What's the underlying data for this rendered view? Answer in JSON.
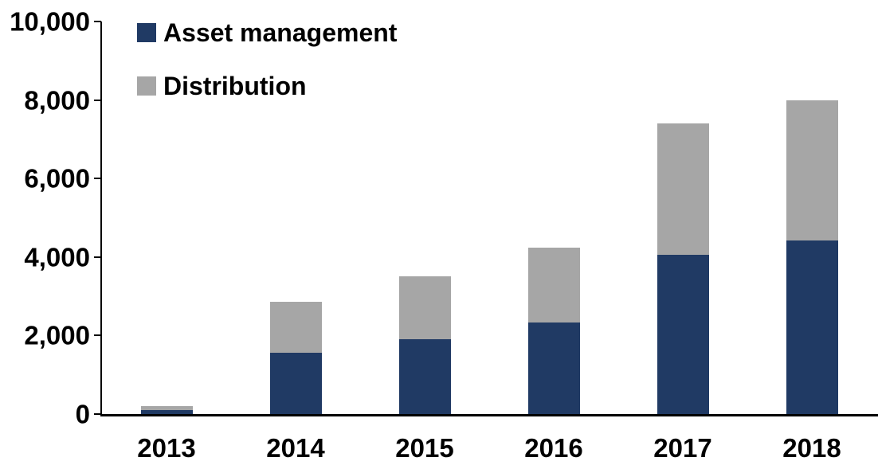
{
  "chart_data": {
    "type": "bar",
    "stacked": true,
    "title": "",
    "xlabel": "",
    "ylabel": "",
    "grid": false,
    "legend_position": "top-left",
    "categories": [
      "2013",
      "2014",
      "2015",
      "2016",
      "2017",
      "2018"
    ],
    "series": [
      {
        "name": "Asset management",
        "color": "#203A64",
        "values": [
          100,
          1560,
          1900,
          2330,
          4060,
          4430
        ]
      },
      {
        "name": "Distribution",
        "color": "#A6A6A6",
        "values": [
          100,
          1310,
          1600,
          1920,
          3340,
          3570
        ]
      }
    ],
    "totals": [
      200,
      2870,
      3500,
      4250,
      7400,
      8000
    ],
    "ylim": [
      0,
      10000
    ],
    "y_ticks": {
      "values": [
        0,
        2000,
        4000,
        6000,
        8000,
        10000
      ],
      "labels": [
        "0",
        "2,000",
        "4,000",
        "6,000",
        "8,000",
        "10,000"
      ]
    },
    "axis_color": "#000000",
    "text_color": "#000000"
  }
}
